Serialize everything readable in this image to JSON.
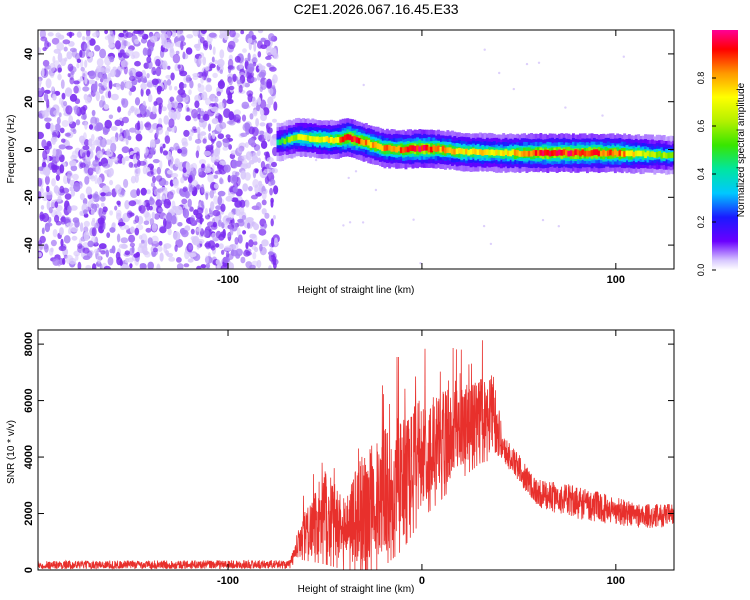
{
  "figure": {
    "title": "C2E1.2026.067.16.45.E33"
  },
  "chart_data": [
    {
      "type": "heatmap",
      "xlabel": "Height of straight line (km)",
      "ylabel": "Frequency (Hz)",
      "xlim": [
        -198,
        130
      ],
      "ylim": [
        -50,
        50
      ],
      "xticks": [
        -100,
        0,
        100
      ],
      "xtick_labels": [
        "-100",
        "",
        "100"
      ],
      "yticks": [
        40,
        20,
        0,
        -20,
        -40
      ],
      "ytick_labels": [
        "40",
        "20",
        "0",
        "-20",
        "-40"
      ],
      "noise_region_x": [
        -198,
        -75
      ],
      "ridge": [
        {
          "x": -75,
          "f": 3.0,
          "amp": 0.35
        },
        {
          "x": -65,
          "f": 5.0,
          "amp": 0.55
        },
        {
          "x": -55,
          "f": 4.5,
          "amp": 0.6
        },
        {
          "x": -45,
          "f": 4.0,
          "amp": 0.65
        },
        {
          "x": -38,
          "f": 5.0,
          "amp": 0.85
        },
        {
          "x": -30,
          "f": 3.0,
          "amp": 0.7
        },
        {
          "x": -20,
          "f": 0.5,
          "amp": 0.7
        },
        {
          "x": -10,
          "f": 0.0,
          "amp": 0.75
        },
        {
          "x": 0,
          "f": 0.5,
          "amp": 0.85
        },
        {
          "x": 10,
          "f": 0.0,
          "amp": 0.7
        },
        {
          "x": 20,
          "f": -1.0,
          "amp": 0.65
        },
        {
          "x": 40,
          "f": -1.5,
          "amp": 0.6
        },
        {
          "x": 60,
          "f": -1.5,
          "amp": 0.8
        },
        {
          "x": 80,
          "f": -1.5,
          "amp": 0.8
        },
        {
          "x": 100,
          "f": -1.5,
          "amp": 0.75
        },
        {
          "x": 115,
          "f": -2.0,
          "amp": 0.55
        },
        {
          "x": 130,
          "f": -2.5,
          "amp": 0.45
        }
      ],
      "colorbar": {
        "label": "Normalized spectral amplitude",
        "range": [
          0,
          1
        ],
        "ticks": [
          0.0,
          0.2,
          0.4,
          0.6,
          0.8
        ],
        "tick_labels": [
          "0.0",
          "0.2",
          "0.4",
          "0.6",
          "0.8"
        ]
      }
    },
    {
      "type": "line",
      "xlabel": "Height of straight line (km)",
      "ylabel": "SNR (10 * v/v)",
      "xlim": [
        -198,
        130
      ],
      "ylim": [
        0,
        8500
      ],
      "xticks": [
        -100,
        0,
        100
      ],
      "xtick_labels": [
        "-100",
        "0",
        "100"
      ],
      "yticks": [
        0,
        2000,
        4000,
        6000,
        8000
      ],
      "ytick_labels": [
        "0",
        "2000",
        "4000",
        "6000",
        "8000"
      ],
      "series": [
        {
          "name": "SNR",
          "color": "#e8302c",
          "envelope": [
            {
              "x": -198,
              "base": 180,
              "spread": 300
            },
            {
              "x": -68,
              "base": 200,
              "spread": 300
            },
            {
              "x": -62,
              "base": 1200,
              "spread": 1400
            },
            {
              "x": -50,
              "base": 2000,
              "spread": 3000
            },
            {
              "x": -40,
              "base": 1500,
              "spread": 2500
            },
            {
              "x": -30,
              "base": 2200,
              "spread": 4000
            },
            {
              "x": -20,
              "base": 2800,
              "spread": 4500
            },
            {
              "x": -10,
              "base": 3400,
              "spread": 4500
            },
            {
              "x": 0,
              "base": 4200,
              "spread": 4000
            },
            {
              "x": 10,
              "base": 4600,
              "spread": 3500
            },
            {
              "x": 20,
              "base": 5000,
              "spread": 3000
            },
            {
              "x": 30,
              "base": 5400,
              "spread": 2700
            },
            {
              "x": 37,
              "base": 5600,
              "spread": 2800
            },
            {
              "x": 42,
              "base": 4300,
              "spread": 1000
            },
            {
              "x": 50,
              "base": 3600,
              "spread": 1000
            },
            {
              "x": 60,
              "base": 2700,
              "spread": 1000
            },
            {
              "x": 80,
              "base": 2400,
              "spread": 1200
            },
            {
              "x": 100,
              "base": 2100,
              "spread": 1000
            },
            {
              "x": 115,
              "base": 1900,
              "spread": 900
            },
            {
              "x": 130,
              "base": 1950,
              "spread": 800
            }
          ]
        }
      ]
    }
  ]
}
